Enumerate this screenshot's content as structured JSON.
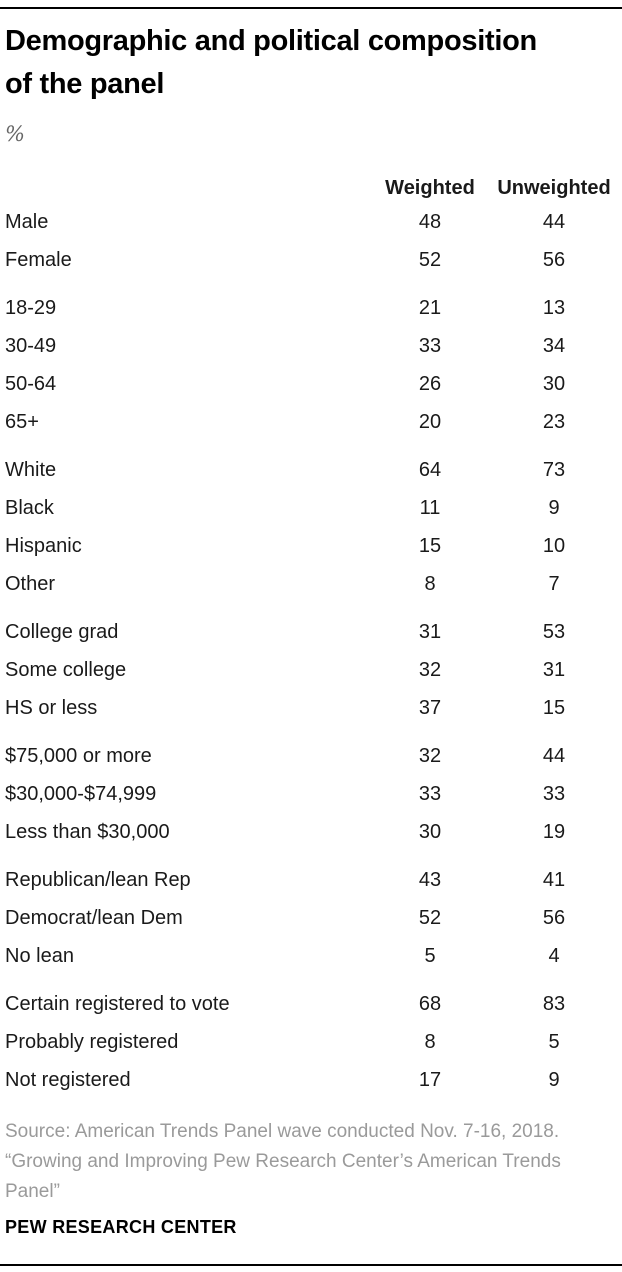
{
  "header": {
    "title": "Demographic and political composition of the panel",
    "title_lines": [
      "Demographic and political composition",
      "of the panel"
    ],
    "unit_label": "%"
  },
  "chart_data": {
    "type": "table",
    "title": "Demographic and political composition of the panel",
    "unit": "%",
    "columns": [
      "Weighted",
      "Unweighted"
    ],
    "groups": [
      [
        {
          "label": "Male",
          "weighted": 48,
          "unweighted": 44
        },
        {
          "label": "Female",
          "weighted": 52,
          "unweighted": 56
        }
      ],
      [
        {
          "label": "18-29",
          "weighted": 21,
          "unweighted": 13
        },
        {
          "label": "30-49",
          "weighted": 33,
          "unweighted": 34
        },
        {
          "label": "50-64",
          "weighted": 26,
          "unweighted": 30
        },
        {
          "label": "65+",
          "weighted": 20,
          "unweighted": 23
        }
      ],
      [
        {
          "label": "White",
          "weighted": 64,
          "unweighted": 73
        },
        {
          "label": "Black",
          "weighted": 11,
          "unweighted": 9
        },
        {
          "label": "Hispanic",
          "weighted": 15,
          "unweighted": 10
        },
        {
          "label": "Other",
          "weighted": 8,
          "unweighted": 7
        }
      ],
      [
        {
          "label": "College grad",
          "weighted": 31,
          "unweighted": 53
        },
        {
          "label": "Some college",
          "weighted": 32,
          "unweighted": 31
        },
        {
          "label": "HS or less",
          "weighted": 37,
          "unweighted": 15
        }
      ],
      [
        {
          "label": "$75,000 or more",
          "weighted": 32,
          "unweighted": 44
        },
        {
          "label": "$30,000-$74,999",
          "weighted": 33,
          "unweighted": 33
        },
        {
          "label": "Less than $30,000",
          "weighted": 30,
          "unweighted": 19
        }
      ],
      [
        {
          "label": "Republican/lean Rep",
          "weighted": 43,
          "unweighted": 41
        },
        {
          "label": "Democrat/lean Dem",
          "weighted": 52,
          "unweighted": 56
        },
        {
          "label": "No lean",
          "weighted": 5,
          "unweighted": 4
        }
      ],
      [
        {
          "label": "Certain registered to vote",
          "weighted": 68,
          "unweighted": 83
        },
        {
          "label": "Probably registered",
          "weighted": 8,
          "unweighted": 5
        },
        {
          "label": "Not registered",
          "weighted": 17,
          "unweighted": 9
        }
      ]
    ],
    "layout": {
      "grid": false,
      "value_alignment": "center",
      "label_alignment": "left"
    }
  },
  "source": {
    "lines": [
      "Source: American Trends Panel wave conducted Nov. 7-16, 2018.",
      "“Growing and Improving Pew Research Center’s American Trends",
      "Panel”"
    ]
  },
  "footer": {
    "brand": "PEW RESEARCH CENTER"
  },
  "colors": {
    "title": "#000000",
    "text": "#1a1a1a",
    "unit": "#666666",
    "muted": "#9a9a9a",
    "rule": "#000000"
  }
}
